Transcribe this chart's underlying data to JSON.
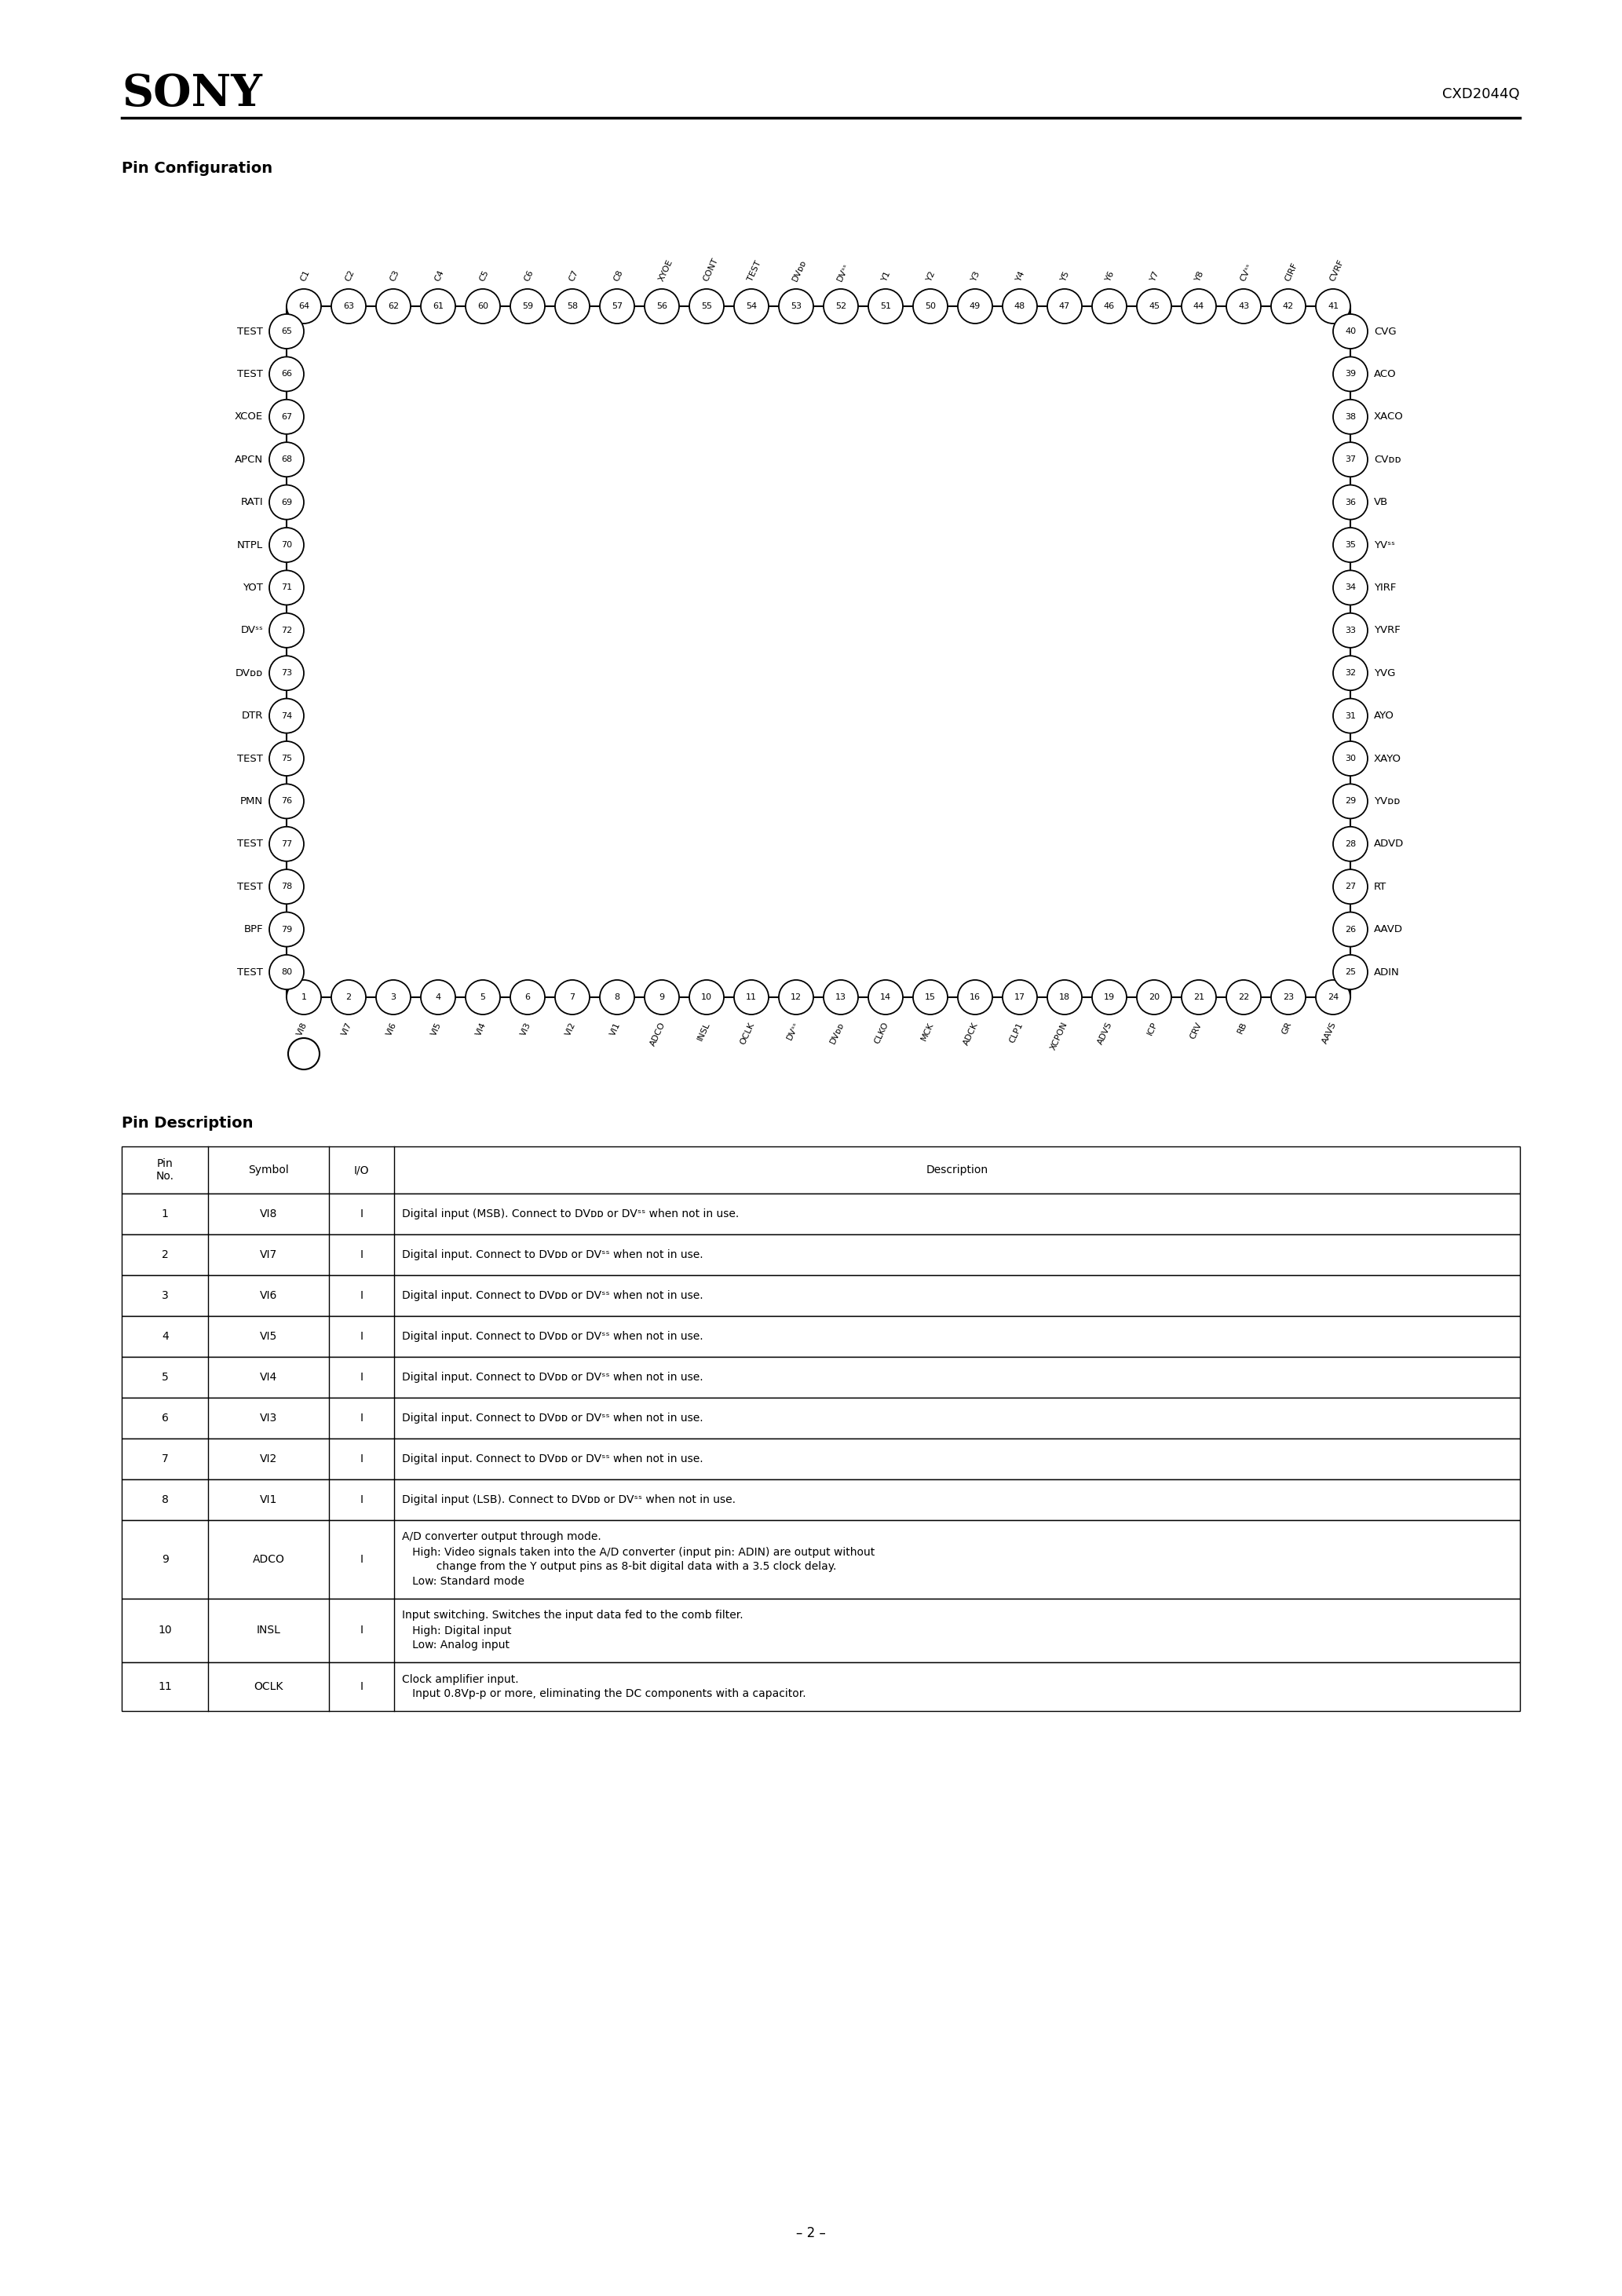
{
  "title": "SONY",
  "doc_number": "CXD2044Q",
  "section1": "Pin Configuration",
  "section2": "Pin Description",
  "page_number": "– 2 –",
  "top_pins": {
    "numbers": [
      64,
      63,
      62,
      61,
      60,
      59,
      58,
      57,
      56,
      55,
      54,
      53,
      52,
      51,
      50,
      49,
      48,
      47,
      46,
      45,
      44,
      43,
      42,
      41
    ],
    "labels": [
      "C1",
      "C2",
      "C3",
      "C4",
      "C5",
      "C6",
      "C7",
      "C8",
      "XYOE",
      "CONT",
      "TEST",
      "DVᴅᴅ",
      "DVˢˢ",
      "Y1",
      "Y2",
      "Y3",
      "Y4",
      "Y5",
      "Y6",
      "Y7",
      "Y8",
      "CVˢˢ",
      "CIRF",
      "CVRF"
    ]
  },
  "left_pins": {
    "numbers": [
      65,
      66,
      67,
      68,
      69,
      70,
      71,
      72,
      73,
      74,
      75,
      76,
      77,
      78,
      79,
      80
    ],
    "labels": [
      "TEST",
      "TEST",
      "XCOE",
      "APCN",
      "RATI",
      "NTPL",
      "YOT",
      "DVˢˢ",
      "DVᴅᴅ",
      "DTR",
      "TEST",
      "PMN",
      "TEST",
      "TEST",
      "BPF",
      "TEST"
    ]
  },
  "right_pins": {
    "numbers": [
      40,
      39,
      38,
      37,
      36,
      35,
      34,
      33,
      32,
      31,
      30,
      29,
      28,
      27,
      26,
      25
    ],
    "labels": [
      "CVG",
      "ACO",
      "XACO",
      "CVᴅᴅ",
      "VB",
      "YVˢˢ",
      "YIRF",
      "YVRF",
      "YVG",
      "AYO",
      "XAYO",
      "YVᴅᴅ",
      "ADVD",
      "RT",
      "AAVD",
      "ADIN"
    ]
  },
  "bottom_pins": {
    "numbers": [
      1,
      2,
      3,
      4,
      5,
      6,
      7,
      8,
      9,
      10,
      11,
      12,
      13,
      14,
      15,
      16,
      17,
      18,
      19,
      20,
      21,
      22,
      23,
      24
    ],
    "labels": [
      "VI8",
      "VI7",
      "VI6",
      "VI5",
      "VI4",
      "VI3",
      "VI2",
      "VI1",
      "ADCO",
      "INSL",
      "OCLK",
      "DVˢˢ",
      "DVᴅᴅ",
      "CLKO",
      "MCK",
      "ADCK",
      "CLP1",
      "XCPON",
      "ADVS",
      "ICP",
      "CRV",
      "RB",
      "GR",
      "AAVS"
    ]
  },
  "table_rows": [
    {
      "pin": "1",
      "symbol": "VI8",
      "io": "I",
      "desc_lines": [
        "Digital input (MSB). Connect to DVᴅᴅ or DVˢˢ when not in use."
      ]
    },
    {
      "pin": "2",
      "symbol": "VI7",
      "io": "I",
      "desc_lines": [
        "Digital input. Connect to DVᴅᴅ or DVˢˢ when not in use."
      ]
    },
    {
      "pin": "3",
      "symbol": "VI6",
      "io": "I",
      "desc_lines": [
        "Digital input. Connect to DVᴅᴅ or DVˢˢ when not in use."
      ]
    },
    {
      "pin": "4",
      "symbol": "VI5",
      "io": "I",
      "desc_lines": [
        "Digital input. Connect to DVᴅᴅ or DVˢˢ when not in use."
      ]
    },
    {
      "pin": "5",
      "symbol": "VI4",
      "io": "I",
      "desc_lines": [
        "Digital input. Connect to DVᴅᴅ or DVˢˢ when not in use."
      ]
    },
    {
      "pin": "6",
      "symbol": "VI3",
      "io": "I",
      "desc_lines": [
        "Digital input. Connect to DVᴅᴅ or DVˢˢ when not in use."
      ]
    },
    {
      "pin": "7",
      "symbol": "VI2",
      "io": "I",
      "desc_lines": [
        "Digital input. Connect to DVᴅᴅ or DVˢˢ when not in use."
      ]
    },
    {
      "pin": "8",
      "symbol": "VI1",
      "io": "I",
      "desc_lines": [
        "Digital input (LSB). Connect to DVᴅᴅ or DVˢˢ when not in use."
      ]
    },
    {
      "pin": "9",
      "symbol": "ADCO",
      "io": "I",
      "desc_lines": [
        "A/D converter output through mode.",
        "   High: Video signals taken into the A/D converter (input pin: ADIN) are output without",
        "          change from the Y output pins as 8-bit digital data with a 3.5 clock delay.",
        "   Low: Standard mode"
      ]
    },
    {
      "pin": "10",
      "symbol": "INSL",
      "io": "I",
      "desc_lines": [
        "Input switching. Switches the input data fed to the comb filter.",
        "   High: Digital input",
        "   Low: Analog input"
      ]
    },
    {
      "pin": "11",
      "symbol": "OCLK",
      "io": "I",
      "desc_lines": [
        "Clock amplifier input.",
        "   Input 0.8Vp-p or more, eliminating the DC components with a capacitor."
      ]
    }
  ]
}
